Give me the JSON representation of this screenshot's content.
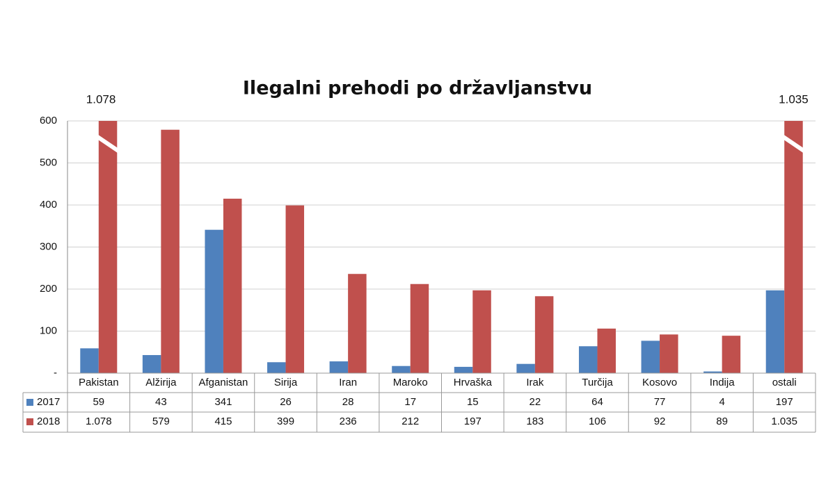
{
  "chart_data": {
    "type": "bar",
    "title": "Ilegalni prehodi po državljanstvu",
    "categories": [
      "Pakistan",
      "Alžirija",
      "Afganistan",
      "Sirija",
      "Iran",
      "Maroko",
      "Hrvaška",
      "Irak",
      "Turčija",
      "Kosovo",
      "Indija",
      "ostali"
    ],
    "series": [
      {
        "name": "2017",
        "color": "#4f81bd",
        "values": [
          59,
          43,
          341,
          26,
          28,
          17,
          15,
          22,
          64,
          77,
          4,
          197
        ]
      },
      {
        "name": "2018",
        "color": "#c0504d",
        "values": [
          1078,
          579,
          415,
          399,
          236,
          212,
          197,
          183,
          106,
          92,
          89,
          1035
        ],
        "value_labels": [
          "1.078",
          "579",
          "415",
          "399",
          "236",
          "212",
          "197",
          "183",
          "106",
          "92",
          "89",
          "1.035"
        ]
      }
    ],
    "ylim": [
      0,
      600
    ],
    "yticks": [
      {
        "value": 0,
        "label": "-"
      },
      100,
      200,
      300,
      400,
      500,
      600
    ],
    "grid": true
  }
}
